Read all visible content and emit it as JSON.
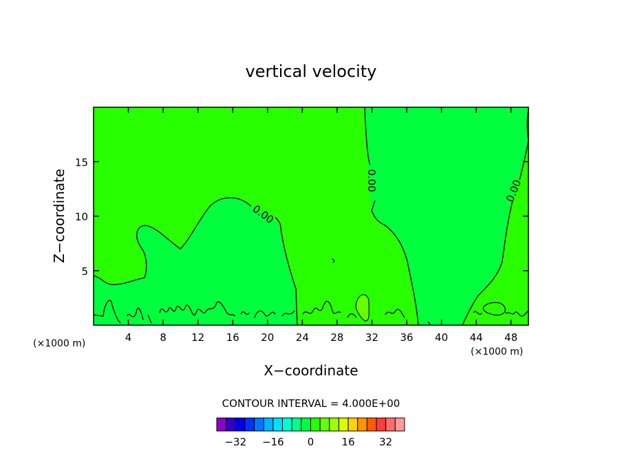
{
  "chart_data": {
    "type": "contour",
    "title": "vertical velocity",
    "xlabel": "X−coordinate",
    "ylabel": "Z−coordinate",
    "x_unit_left": "(×1000 m)",
    "x_unit_right": "(×1000 m)",
    "xlim": [
      0,
      50
    ],
    "ylim": [
      0,
      20
    ],
    "x_ticks": [
      4,
      8,
      12,
      16,
      20,
      24,
      28,
      32,
      36,
      40,
      44,
      48
    ],
    "y_ticks": [
      5,
      10,
      15
    ],
    "contour_interval_text": "CONTOUR INTERVAL = 4.000E+00",
    "contour_labels": [
      "0.00",
      "0.00",
      "0.00"
    ],
    "colorbar": {
      "tick_labels": [
        "−32",
        "−16",
        "0",
        "16",
        "32"
      ],
      "tick_values": [
        -32,
        -16,
        0,
        16,
        32
      ],
      "min": -40,
      "max": 40,
      "colors": [
        "#8c00c8",
        "#3200c8",
        "#0000e6",
        "#0032ff",
        "#0078ff",
        "#00b4ff",
        "#00e1ff",
        "#00ffd2",
        "#00ff8c",
        "#00ff3c",
        "#28ff00",
        "#64ff00",
        "#a0ff00",
        "#dcff00",
        "#ffd200",
        "#ff9600",
        "#ff5a00",
        "#ff3c3c",
        "#ff6e6e",
        "#ff9b9b"
      ]
    },
    "regions": {
      "negative_color": "#00ff3c",
      "positive_color": "#28ff00",
      "strong_positive_color": "#64ff00"
    }
  }
}
